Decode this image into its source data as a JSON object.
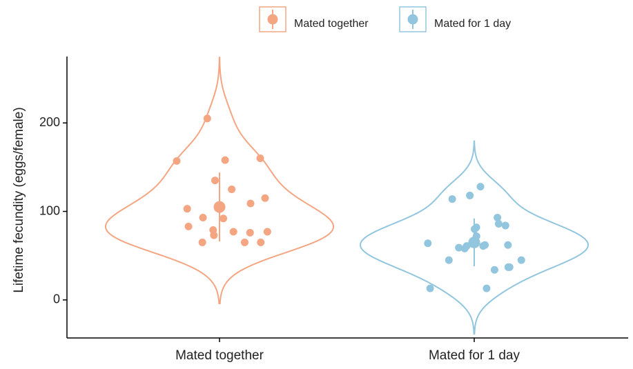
{
  "chart_data": {
    "type": "violin",
    "y_label": "Lifetime fecundity (eggs/female)",
    "categories": [
      "Mated together",
      "Mated for 1 day"
    ],
    "series": [
      {
        "name": "Mated together",
        "color": "#f4a582",
        "values": [
          160,
          157,
          158,
          205,
          135,
          125,
          103,
          93,
          92,
          115,
          109,
          83,
          77,
          76,
          73,
          65,
          79,
          77,
          65,
          65
        ],
        "mean": 105,
        "error": 39
      },
      {
        "name": "Mated for 1 day",
        "color": "#92c5de",
        "values": [
          93,
          128,
          118,
          114,
          84,
          86,
          80,
          72,
          82,
          64,
          61,
          62,
          58,
          62,
          59,
          61,
          45,
          45,
          34,
          37,
          37,
          13,
          13
        ],
        "mean": 65,
        "error": 27
      }
    ],
    "ylim": [
      -43,
      275
    ],
    "yticks": [
      0,
      100,
      200
    ],
    "legend": "top"
  }
}
